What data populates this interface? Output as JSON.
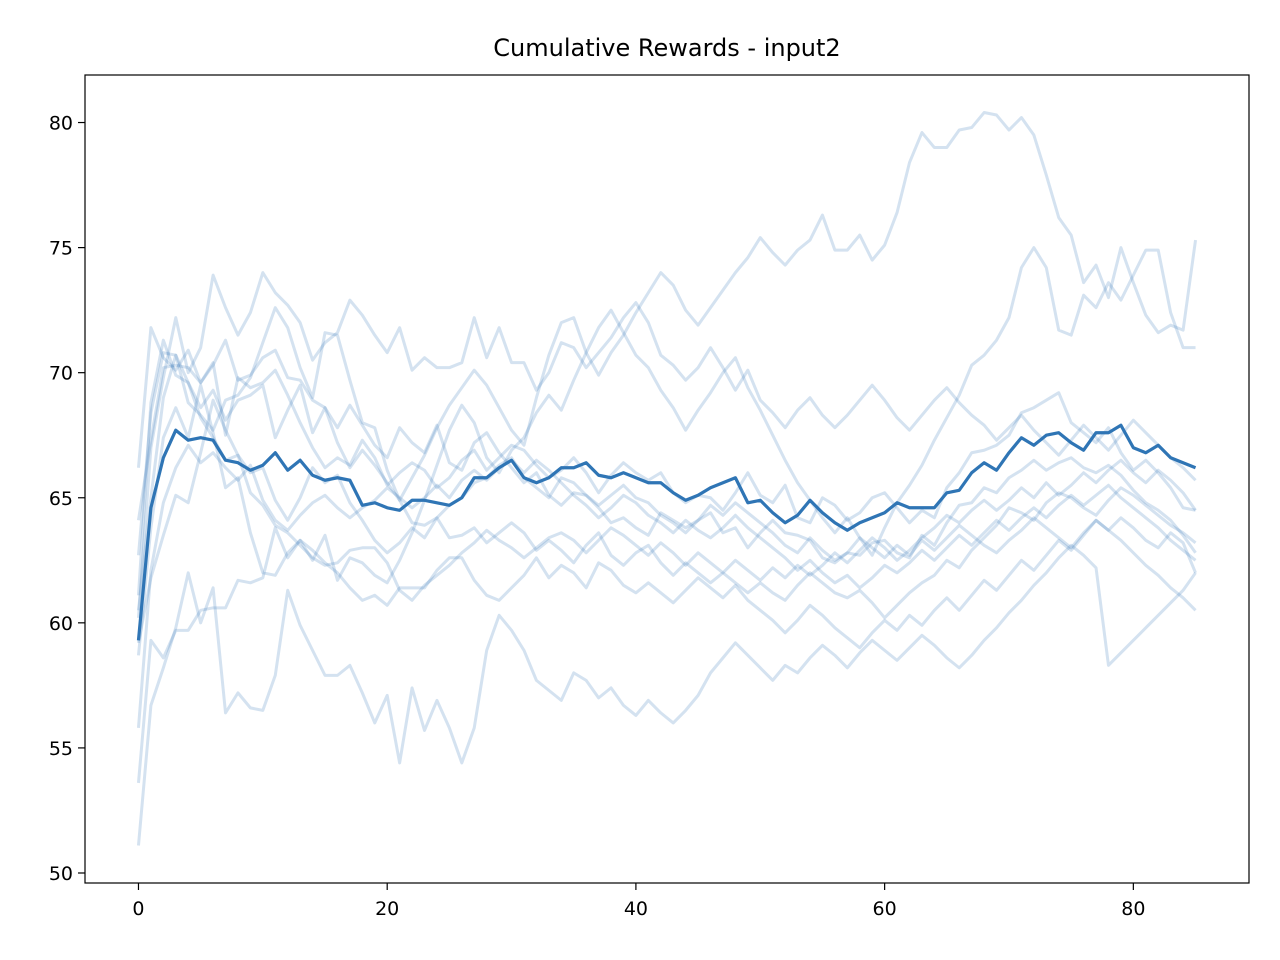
{
  "chart_data": {
    "type": "line",
    "title": "Cumulative Rewards - input2",
    "xlabel": "",
    "ylabel": "",
    "xlim": [
      -4.3,
      89.3
    ],
    "ylim": [
      49.6,
      81.9
    ],
    "xticks": [
      0,
      20,
      40,
      60,
      80
    ],
    "yticks": [
      50,
      55,
      60,
      65,
      70,
      75,
      80
    ],
    "grid": false,
    "legend": "none",
    "colors": {
      "runs": "#3b7dba",
      "mean": "#2f75b5"
    },
    "mean_series": {
      "x_start": 0,
      "x_step": 1,
      "values": [
        59.3,
        64.6,
        66.6,
        67.7,
        67.3,
        67.4,
        67.3,
        66.5,
        66.4,
        66.1,
        66.3,
        66.8,
        66.1,
        66.5,
        65.9,
        65.7,
        65.8,
        65.7,
        64.7,
        64.8,
        64.6,
        64.5,
        64.9,
        64.9,
        64.8,
        64.7,
        65.0,
        65.8,
        65.8,
        66.2,
        66.5,
        65.8,
        65.6,
        65.8,
        66.2,
        66.2,
        66.4,
        65.9,
        65.8,
        66.0,
        65.8,
        65.6,
        65.6,
        65.2,
        64.9,
        65.1,
        65.4,
        65.6,
        65.8,
        64.8,
        64.9,
        64.4,
        64.0,
        64.3,
        64.9,
        64.4,
        64.0,
        63.7,
        64.0,
        64.2,
        64.4,
        64.8,
        64.6,
        64.6,
        64.6,
        65.2,
        65.3,
        66.0,
        66.4,
        66.1,
        66.8,
        67.4,
        67.1,
        67.5,
        67.6,
        67.2,
        66.9,
        67.6,
        67.6,
        67.9,
        67.0,
        66.8,
        67.1,
        66.6,
        66.4,
        66.2
      ]
    },
    "run_series": [
      {
        "x_start": 0,
        "x_step": 1,
        "values": [
          66.2,
          71.8,
          70.6,
          70.1,
          70.9,
          69.6,
          70.4,
          67.5,
          69.8,
          69.4,
          69.6,
          70.1,
          69.1,
          68.0,
          67.0,
          66.2,
          66.6,
          66.3,
          67.3,
          66.6,
          65.5,
          66.0,
          66.4,
          66.1,
          65.4,
          65.8,
          66.5,
          66.9,
          66.1,
          66.6,
          67.1,
          66.9,
          66.3,
          65.8,
          66.1,
          66.6,
          66.0,
          65.2,
          65.9,
          66.4,
          66.0,
          65.7,
          66.0,
          65.2,
          64.8,
          65.1,
          65.0,
          64.5,
          65.2,
          66.0,
          65.1,
          64.8,
          65.5,
          64.2,
          64.0,
          65.0,
          64.7,
          64.1,
          64.4,
          65.0,
          65.2,
          64.6,
          64.0,
          64.5,
          64.2,
          65.4,
          66.0,
          66.8,
          66.9,
          67.1,
          67.5,
          68.4,
          68.6,
          68.9,
          69.2,
          68.0,
          67.6,
          67.2,
          67.8,
          66.8,
          66.1,
          66.5,
          66.0,
          65.4,
          64.6,
          64.5
        ]
      },
      {
        "x_start": 0,
        "x_step": 1,
        "values": [
          64.1,
          67.3,
          70.2,
          70.3,
          70.2,
          69.6,
          70.3,
          71.3,
          69.7,
          69.9,
          70.6,
          70.9,
          69.8,
          69.7,
          68.9,
          68.6,
          67.8,
          68.7,
          67.9,
          67.1,
          66.6,
          67.8,
          67.2,
          66.8,
          67.9,
          66.4,
          66.1,
          67.2,
          67.6,
          66.8,
          66.2,
          65.6,
          66.0,
          65.1,
          64.7,
          65.2,
          65.1,
          64.6,
          64.0,
          64.2,
          63.8,
          63.5,
          64.4,
          64.1,
          63.8,
          64.1,
          64.4,
          63.6,
          63.8,
          63.0,
          63.6,
          64.1,
          63.6,
          63.5,
          63.3,
          62.6,
          62.4,
          62.8,
          62.7,
          63.2,
          63.3,
          62.8,
          62.6,
          63.5,
          63.1,
          64.0,
          64.7,
          64.8,
          65.4,
          65.2,
          65.8,
          66.1,
          66.5,
          66.1,
          66.4,
          66.6,
          66.2,
          66.0,
          66.3,
          65.9,
          65.3,
          64.8,
          64.5,
          64.1,
          63.5,
          62.8
        ]
      },
      {
        "x_start": 0,
        "x_step": 1,
        "values": [
          62.7,
          68.4,
          70.8,
          70.7,
          68.8,
          68.3,
          67.7,
          68.9,
          69.1,
          69.8,
          71.2,
          72.6,
          71.8,
          70.2,
          69.0,
          71.6,
          71.5,
          69.7,
          68.0,
          67.8,
          66.1,
          64.9,
          64.0,
          63.9,
          64.2,
          63.4,
          63.5,
          63.8,
          63.2,
          63.6,
          64.0,
          63.6,
          62.9,
          63.3,
          62.9,
          62.4,
          63.1,
          63.6,
          62.7,
          62.3,
          62.8,
          63.1,
          62.4,
          61.9,
          62.4,
          62.0,
          61.6,
          62.0,
          61.6,
          61.2,
          61.6,
          61.2,
          60.9,
          61.5,
          62.0,
          61.6,
          61.2,
          61.0,
          61.3,
          60.8,
          60.2,
          60.7,
          61.2,
          61.6,
          61.9,
          62.5,
          62.2,
          62.9,
          63.4,
          63.9,
          64.6,
          64.4,
          64.1,
          64.8,
          65.2,
          65.0,
          64.6,
          64.3,
          64.9,
          65.4,
          65.1,
          64.7,
          64.3,
          63.9,
          63.6,
          63.2
        ]
      },
      {
        "x_start": 0,
        "x_step": 1,
        "values": [
          61.1,
          68.8,
          71.3,
          69.9,
          69.6,
          68.2,
          67.4,
          66.5,
          66.7,
          65.2,
          64.7,
          63.9,
          63.6,
          63.1,
          62.6,
          62.3,
          62.4,
          62.9,
          63.0,
          63.0,
          62.4,
          61.3,
          60.9,
          61.5,
          61.9,
          62.3,
          62.8,
          63.2,
          63.7,
          63.3,
          63.0,
          62.6,
          63.0,
          63.4,
          63.6,
          63.3,
          62.8,
          63.3,
          63.8,
          63.5,
          63.1,
          62.7,
          63.2,
          62.8,
          62.3,
          62.8,
          62.4,
          62.0,
          62.5,
          62.1,
          61.7,
          62.2,
          61.8,
          62.3,
          61.9,
          62.3,
          62.8,
          62.4,
          62.9,
          63.4,
          63.0,
          62.5,
          62.9,
          63.4,
          63.8,
          64.3,
          64.0,
          64.5,
          64.9,
          64.5,
          64.9,
          65.4,
          65.0,
          65.6,
          65.1,
          65.5,
          66.0,
          65.6,
          66.1,
          66.5,
          66.0,
          65.6,
          66.1,
          65.7,
          65.2,
          64.5
        ]
      },
      {
        "x_start": 0,
        "x_step": 1,
        "values": [
          59.2,
          61.8,
          63.5,
          65.1,
          64.8,
          66.8,
          68.9,
          67.7,
          66.7,
          66.0,
          66.2,
          64.9,
          64.1,
          65.0,
          66.2,
          65.6,
          65.9,
          64.8,
          64.1,
          63.3,
          62.8,
          63.2,
          63.8,
          63.4,
          64.2,
          64.7,
          65.0,
          65.6,
          65.8,
          66.3,
          66.6,
          65.8,
          65.4,
          65.0,
          65.8,
          65.6,
          65.1,
          64.7,
          65.1,
          65.5,
          65.0,
          64.8,
          64.3,
          64.0,
          63.6,
          64.1,
          64.7,
          64.3,
          64.8,
          64.4,
          64.0,
          63.6,
          63.1,
          62.8,
          63.4,
          62.9,
          62.5,
          62.8,
          63.4,
          63.0,
          62.6,
          63.1,
          62.7,
          63.3,
          62.9,
          63.4,
          63.9,
          63.5,
          63.1,
          62.8,
          63.3,
          63.7,
          64.2,
          63.8,
          63.4,
          63.0,
          63.6,
          64.1,
          63.7,
          64.2,
          63.8,
          63.3,
          63.0,
          63.6,
          63.2,
          62.0
        ]
      },
      {
        "x_start": 0,
        "x_step": 1,
        "values": [
          55.8,
          62.1,
          64.8,
          66.2,
          67.1,
          66.4,
          66.8,
          66.2,
          65.7,
          66.3,
          64.9,
          64.1,
          63.7,
          64.3,
          64.8,
          65.1,
          64.6,
          64.2,
          64.6,
          64.9,
          65.4,
          65.0,
          64.6,
          65.0,
          65.5,
          65.0,
          65.7,
          66.1,
          65.7,
          66.2,
          66.5,
          66.0,
          66.5,
          66.1,
          65.6,
          65.1,
          64.7,
          64.2,
          64.6,
          65.1,
          64.8,
          64.3,
          64.0,
          63.6,
          64.1,
          63.7,
          63.4,
          63.8,
          64.3,
          63.8,
          63.4,
          63.0,
          62.6,
          62.1,
          62.5,
          62.0,
          61.6,
          61.9,
          61.4,
          61.8,
          62.3,
          62.0,
          62.4,
          62.9,
          62.5,
          63.0,
          63.5,
          63.1,
          63.6,
          64.1,
          63.7,
          64.2,
          64.6,
          64.2,
          64.7,
          65.1,
          64.7,
          65.1,
          65.5,
          65.0,
          64.6,
          64.2,
          63.8,
          63.3,
          62.9,
          62.5
        ]
      },
      {
        "x_start": 0,
        "x_step": 1,
        "values": [
          53.6,
          59.3,
          58.6,
          59.7,
          59.7,
          60.5,
          60.6,
          60.6,
          61.7,
          61.6,
          61.8,
          63.8,
          62.6,
          63.3,
          62.9,
          62.4,
          62.0,
          61.4,
          60.9,
          61.1,
          60.7,
          61.4,
          61.4,
          61.4,
          62.1,
          62.6,
          62.6,
          61.7,
          61.1,
          60.9,
          61.4,
          61.9,
          62.6,
          61.8,
          62.3,
          62.0,
          61.4,
          62.4,
          62.1,
          61.5,
          61.2,
          61.6,
          61.2,
          60.8,
          61.3,
          61.8,
          61.4,
          61.0,
          61.5,
          60.9,
          60.5,
          60.1,
          59.6,
          60.1,
          60.7,
          60.3,
          59.8,
          59.4,
          59.0,
          59.6,
          60.1,
          59.7,
          60.3,
          59.9,
          60.5,
          61.0,
          60.5,
          61.1,
          61.7,
          61.3,
          61.9,
          62.5,
          62.1,
          62.7,
          63.3,
          62.9,
          63.5,
          64.1,
          63.7,
          63.3,
          62.8,
          62.3,
          61.9,
          61.4,
          61.0,
          60.5
        ]
      },
      {
        "x_start": 0,
        "x_step": 1,
        "values": [
          51.1,
          56.7,
          58.2,
          59.8,
          62.0,
          60.0,
          61.4,
          56.4,
          57.2,
          56.6,
          56.5,
          57.9,
          61.3,
          59.9,
          58.9,
          57.9,
          57.9,
          58.3,
          57.2,
          56.0,
          57.1,
          54.4,
          57.4,
          55.7,
          56.9,
          55.8,
          54.4,
          55.8,
          58.9,
          60.3,
          59.7,
          58.9,
          57.7,
          57.3,
          56.9,
          58.0,
          57.7,
          57.0,
          57.4,
          56.7,
          56.3,
          56.9,
          56.4,
          56.0,
          56.5,
          57.1,
          58.0,
          58.6,
          59.2,
          58.7,
          58.2,
          57.7,
          58.3,
          58.0,
          58.6,
          59.1,
          58.7,
          58.2,
          58.8,
          59.3,
          58.9,
          58.5,
          59.0,
          59.5,
          59.1,
          58.6,
          58.2,
          58.7,
          59.3,
          59.8,
          60.4,
          60.9,
          61.5,
          62.0,
          62.6,
          63.1,
          62.7,
          62.2,
          58.3,
          58.8,
          59.3,
          59.8,
          60.3,
          60.8,
          61.3,
          62.0
        ]
      },
      {
        "x_start": 0,
        "x_step": 1,
        "values": [
          60.2,
          67.0,
          69.8,
          72.2,
          70.0,
          71.0,
          73.9,
          72.6,
          71.5,
          72.4,
          74.0,
          73.2,
          72.7,
          72.0,
          70.5,
          71.2,
          71.6,
          72.9,
          72.3,
          71.5,
          70.8,
          71.8,
          70.1,
          70.6,
          70.2,
          70.2,
          70.4,
          72.2,
          70.6,
          71.8,
          70.4,
          70.4,
          69.3,
          70.0,
          71.2,
          71.0,
          70.2,
          70.8,
          71.4,
          72.2,
          72.8,
          72.0,
          70.7,
          70.3,
          69.7,
          70.2,
          71.0,
          70.2,
          69.3,
          70.1,
          68.9,
          68.4,
          67.8,
          68.5,
          69.0,
          68.3,
          67.8,
          68.3,
          68.9,
          69.5,
          68.9,
          68.2,
          67.7,
          68.3,
          68.9,
          69.4,
          68.8,
          68.3,
          67.9,
          67.3,
          67.8,
          68.3,
          67.7,
          67.2,
          66.7,
          67.3,
          67.9,
          67.4,
          66.9,
          67.5,
          68.1,
          67.6,
          67.1,
          66.6,
          66.2,
          65.7
        ]
      },
      {
        "x_start": 0,
        "x_step": 1,
        "values": [
          60.5,
          65.0,
          69.0,
          70.7,
          69.6,
          68.6,
          69.3,
          68.1,
          68.9,
          69.1,
          69.5,
          67.4,
          68.5,
          69.5,
          67.6,
          68.6,
          67.2,
          66.2,
          66.9,
          66.3,
          65.6,
          64.9,
          65.8,
          66.7,
          67.8,
          68.7,
          69.4,
          70.1,
          69.5,
          68.6,
          67.7,
          67.1,
          69.0,
          70.7,
          72.0,
          72.2,
          70.8,
          69.9,
          70.8,
          71.5,
          72.4,
          73.2,
          74.0,
          73.5,
          72.5,
          71.9,
          72.6,
          73.3,
          74.0,
          74.6,
          75.4,
          74.8,
          74.3,
          74.9,
          75.3,
          76.3,
          74.9,
          74.9,
          75.5,
          74.5,
          75.1,
          76.4,
          78.4,
          79.6,
          79.0,
          79.0,
          79.7,
          79.8,
          80.4,
          80.3,
          79.7,
          80.2,
          79.5,
          77.9,
          76.2,
          75.5,
          73.6,
          74.3,
          73.0,
          75.0,
          73.6,
          72.3,
          71.6,
          71.9,
          71.7,
          75.3
        ]
      },
      {
        "x_start": 0,
        "x_step": 1,
        "values": [
          58.7,
          63.8,
          67.4,
          68.6,
          67.4,
          69.5,
          67.6,
          65.4,
          65.8,
          63.6,
          62.0,
          61.9,
          62.8,
          63.3,
          62.5,
          63.5,
          61.7,
          62.6,
          62.4,
          61.9,
          61.6,
          62.5,
          63.6,
          64.9,
          66.3,
          67.7,
          68.7,
          68.0,
          66.6,
          66.0,
          66.9,
          67.4,
          68.4,
          69.1,
          68.5,
          69.7,
          70.8,
          71.8,
          72.5,
          71.6,
          70.7,
          70.2,
          69.3,
          68.6,
          67.7,
          68.5,
          69.2,
          70.0,
          70.6,
          69.4,
          68.5,
          67.5,
          66.5,
          65.6,
          64.9,
          64.2,
          63.6,
          64.2,
          63.4,
          62.7,
          63.8,
          64.8,
          65.5,
          66.3,
          67.3,
          68.2,
          69.1,
          70.3,
          70.7,
          71.3,
          72.2,
          74.2,
          75.0,
          74.2,
          71.7,
          71.5,
          73.1,
          72.6,
          73.6,
          72.9,
          73.9,
          74.9,
          74.9,
          72.4,
          71.0,
          71.0
        ]
      }
    ]
  }
}
